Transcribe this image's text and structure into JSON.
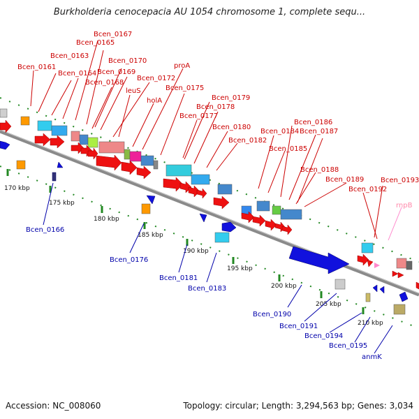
{
  "title": "Burkholderia cenocepacia AU 1054 chromosome 1, complete sequ...",
  "footer": {
    "accession": "Accession: NC_008060",
    "stats": "Topology: circular; Length: 3,294,563 bp; Genes: 3,034"
  },
  "colors": {
    "backbone": "#8a8a8a",
    "plus_label": "#cc0000",
    "minus_label": "#0000aa",
    "rna_label": "#ff88aa",
    "cds_plus": "#ee1111",
    "cds_minus": "#1111dd",
    "tick_dots": "#228822"
  },
  "scale_ticks": [
    "170 kbp",
    "175 kbp",
    "180 kbp",
    "185 kbp",
    "190 kbp",
    "195 kbp",
    "200 kbp",
    "205 kbp",
    "210 kbp"
  ],
  "plus_labels": [
    "Bcen_0167",
    "Bcen_0165",
    "Bcen_0163",
    "Bcen_0170",
    "Bcen_0161",
    "Bcen_0164",
    "Bcen_0169",
    "proA",
    "Bcen_0168",
    "Bcen_0172",
    "leuS",
    "Bcen_0175",
    "holA",
    "Bcen_0179",
    "Bcen_0178",
    "Bcen_0177",
    "Bcen_0180",
    "Bcen_0186",
    "Bcen_0184",
    "Bcen_0187",
    "Bcen_0182",
    "Bcen_0185",
    "Bcen_0188",
    "Bcen_0189",
    "Bcen_0193",
    "Bcen_0192"
  ],
  "rna_labels": [
    "rnpB"
  ],
  "minus_labels": [
    "Bcen_0166",
    "Bcen_0176",
    "Bcen_0181",
    "Bcen_0183",
    "Bcen_0190",
    "Bcen_0191",
    "Bcen_0194",
    "Bcen_0195",
    "anmK"
  ]
}
